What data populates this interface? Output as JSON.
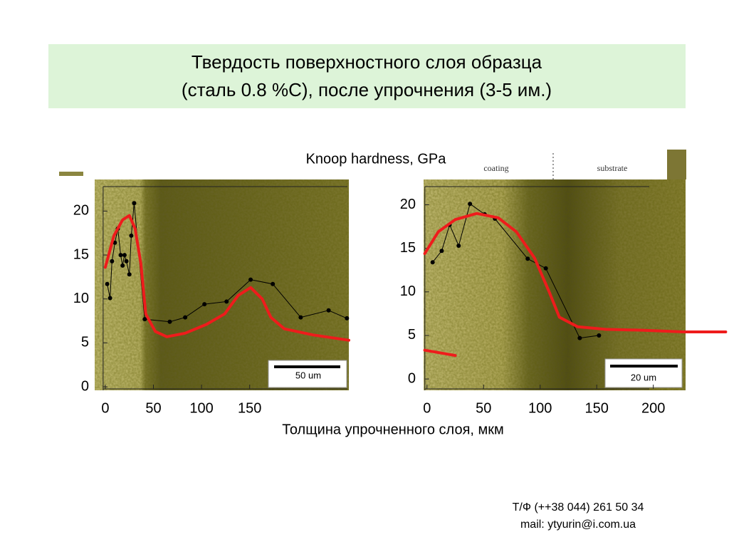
{
  "header": {
    "title": [
      "Твердость поверхностного слоя образца",
      "(сталь 0.8 %С), после упрочнения (3-5 им.)"
    ]
  },
  "chart_data": [
    {
      "type": "line",
      "ylabel": "Knoop hardness, GPa",
      "xlabel": "Толщина упрочненного слоя, мкм",
      "scale_bar": "50 um",
      "xlim": [
        -11,
        253
      ],
      "ylim": [
        -0.4,
        23.6
      ],
      "xticks": [
        0,
        50,
        100,
        150
      ],
      "yticks": [
        0,
        5,
        10,
        15,
        20
      ],
      "series": [
        {
          "color": "#000000",
          "marker": true,
          "x": [
            2,
            5,
            7,
            10,
            13,
            16,
            18,
            20,
            22,
            25,
            27,
            30,
            41,
            67,
            83,
            103,
            126,
            151,
            174,
            203,
            232,
            251
          ],
          "values": [
            11.7,
            10.1,
            14.3,
            16.4,
            18,
            15,
            13.8,
            15,
            14.3,
            12.8,
            17.2,
            20.9,
            7.7,
            7.4,
            7.9,
            9.4,
            9.7,
            12.2,
            11.7,
            7.9,
            8.7,
            7.8
          ]
        },
        {
          "color": "#ee1c1c",
          "marker": false,
          "x": [
            0,
            9,
            18,
            25,
            31,
            37,
            42,
            52,
            64,
            83,
            105,
            124,
            138,
            151,
            163,
            172,
            186,
            216,
            253
          ],
          "values": [
            13.6,
            17.2,
            19,
            19.5,
            18,
            14,
            8.3,
            6.3,
            5.7,
            6.1,
            7.1,
            8.3,
            10.4,
            11.3,
            10,
            7.9,
            6.6,
            5.9,
            5.3
          ]
        }
      ]
    },
    {
      "type": "line",
      "scale_bar": "20 um",
      "annotations": [
        "coating",
        "substrate"
      ],
      "xlim": [
        -3,
        265
      ],
      "ylim": [
        -1.3,
        22.9
      ],
      "xticks": [
        0,
        50,
        100,
        150,
        200
      ],
      "yticks": [
        0,
        5,
        10,
        15,
        20
      ],
      "series": [
        {
          "color": "#000000",
          "marker": true,
          "x": [
            5,
            13,
            20,
            28,
            38,
            51,
            60,
            89,
            105,
            135,
            152
          ],
          "values": [
            13.4,
            14.7,
            17.7,
            15.3,
            20.1,
            18.9,
            18.4,
            13.8,
            12.7,
            4.7,
            5.0
          ]
        },
        {
          "color": "#ee1c1c",
          "marker": false,
          "x": [
            -2,
            10,
            25,
            44,
            63,
            79,
            95,
            108,
            117,
            133,
            158,
            190,
            227,
            264,
            null,
            -2,
            25
          ],
          "values": [
            14.4,
            16.9,
            18.3,
            19,
            18.5,
            16.9,
            13.9,
            10,
            7.1,
            6,
            5.7,
            5.6,
            5.4,
            5.4,
            null,
            3.3,
            2.7
          ]
        }
      ]
    }
  ],
  "footer": {
    "lines": [
      "Т/Ф (++38 044) 261 50 34",
      "mail: ytyurin@i.com.ua"
    ]
  }
}
